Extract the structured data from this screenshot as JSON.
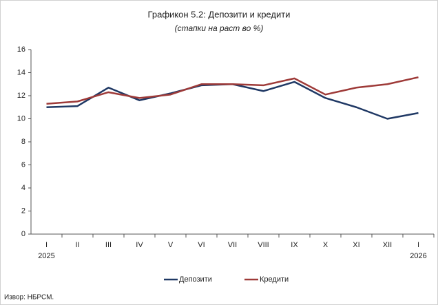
{
  "chart_data": {
    "type": "line",
    "title": "Графикон 5.2: Депозити и кредити",
    "subtitle": "(стапки на раст во %)",
    "categories": [
      "I",
      "II",
      "III",
      "IV",
      "V",
      "VI",
      "VII",
      "VIII",
      "IX",
      "X",
      "XI",
      "XII",
      "I"
    ],
    "year_labels": [
      "2025",
      null,
      null,
      null,
      null,
      null,
      null,
      null,
      null,
      null,
      null,
      null,
      "2026"
    ],
    "series": [
      {
        "name": "Депозити",
        "color": "#1f3864",
        "values": [
          11.0,
          11.1,
          12.7,
          11.6,
          12.2,
          12.9,
          13.0,
          12.4,
          13.2,
          11.8,
          11.0,
          10.0,
          10.5
        ]
      },
      {
        "name": "Кредити",
        "color": "#9e3a38",
        "values": [
          11.3,
          11.5,
          12.3,
          11.8,
          12.1,
          13.0,
          13.0,
          12.9,
          13.5,
          12.1,
          12.7,
          13.0,
          13.6
        ]
      }
    ],
    "ylim": [
      0,
      16
    ],
    "yticks": [
      0,
      2,
      4,
      6,
      8,
      10,
      12,
      14,
      16
    ],
    "grid": false,
    "legend": "bottom",
    "source": "Извор: НБРСМ."
  }
}
